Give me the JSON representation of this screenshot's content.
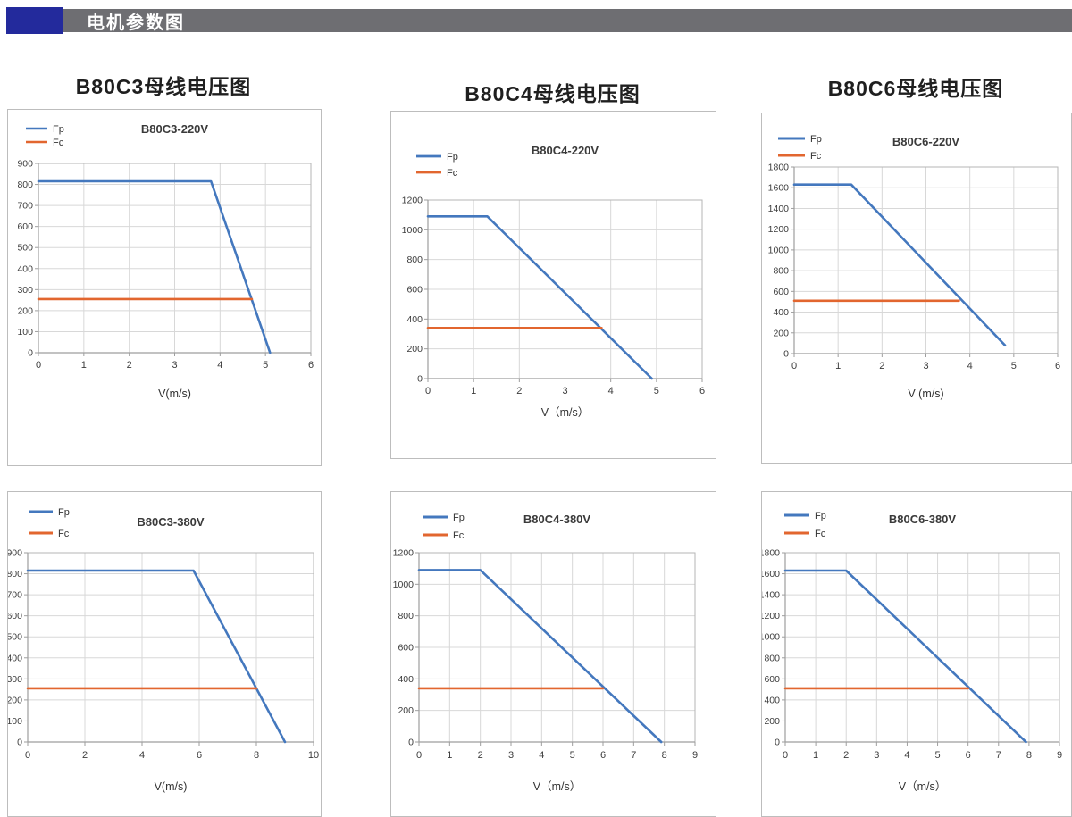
{
  "header": {
    "title": "电机参数图"
  },
  "columns": [
    {
      "heading": "B80C3母线电压图"
    },
    {
      "heading": "B80C4母线电压图"
    },
    {
      "heading": "B80C6母线电压图"
    }
  ],
  "palette": {
    "fp_blue": "#4478BE",
    "fc_orange": "#E2662F",
    "header_block_blue": "#232A9C",
    "header_bar_gray": "#6E6E72",
    "grid_gray": "#D8D8D8",
    "plot_border_gray": "#B5B5B5",
    "axis_gray": "#9E9E9E"
  },
  "chart_data": [
    {
      "type": "line",
      "title": "B80C3-220V",
      "xlabel": "V(m/s)",
      "xlim": [
        0,
        6
      ],
      "x_step": 1,
      "ylim": [
        0,
        900
      ],
      "y_step": 100,
      "grid": true,
      "legend_position": "top-left",
      "series": [
        {
          "name": "Fp",
          "color": "#4478BE",
          "points": [
            [
              0,
              815
            ],
            [
              3.8,
              815
            ],
            [
              5.1,
              0
            ]
          ]
        },
        {
          "name": "Fc",
          "color": "#E2662F",
          "points": [
            [
              0,
              255
            ],
            [
              4.7,
              255
            ]
          ]
        }
      ]
    },
    {
      "type": "line",
      "title": "B80C4-220V",
      "xlabel": "V（m/s）",
      "xlim": [
        0,
        6
      ],
      "x_step": 1,
      "ylim": [
        0,
        1200
      ],
      "y_step": 200,
      "grid": true,
      "legend_position": "top-left",
      "series": [
        {
          "name": "Fp",
          "color": "#4478BE",
          "points": [
            [
              0,
              1090
            ],
            [
              1.3,
              1090
            ],
            [
              4.9,
              0
            ]
          ]
        },
        {
          "name": "Fc",
          "color": "#E2662F",
          "points": [
            [
              0,
              340
            ],
            [
              3.8,
              340
            ]
          ]
        }
      ]
    },
    {
      "type": "line",
      "title": "B80C6-220V",
      "xlabel": "V (m/s)",
      "xlim": [
        0,
        6
      ],
      "x_step": 1,
      "ylim": [
        0,
        1800
      ],
      "y_step": 200,
      "grid": true,
      "legend_position": "top-left",
      "series": [
        {
          "name": "Fp",
          "color": "#4478BE",
          "points": [
            [
              0,
              1630
            ],
            [
              1.3,
              1630
            ],
            [
              4.8,
              80
            ]
          ]
        },
        {
          "name": "Fc",
          "color": "#E2662F",
          "points": [
            [
              0,
              510
            ],
            [
              3.75,
              510
            ]
          ]
        }
      ]
    },
    {
      "type": "line",
      "title": "B80C3-380V",
      "xlabel": "V(m/s)",
      "xlim": [
        0,
        10
      ],
      "x_step": 2,
      "ylim": [
        0,
        900
      ],
      "y_step": 100,
      "grid": true,
      "legend_position": "top-left",
      "series": [
        {
          "name": "Fp",
          "color": "#4478BE",
          "points": [
            [
              0,
              815
            ],
            [
              5.8,
              815
            ],
            [
              9,
              0
            ]
          ]
        },
        {
          "name": "Fc",
          "color": "#E2662F",
          "points": [
            [
              0,
              255
            ],
            [
              8,
              255
            ]
          ]
        }
      ]
    },
    {
      "type": "line",
      "title": "B80C4-380V",
      "xlabel": "V（m/s）",
      "xlim": [
        0,
        9
      ],
      "x_step": 1,
      "ylim": [
        0,
        1200
      ],
      "y_step": 200,
      "grid": true,
      "legend_position": "top-left",
      "series": [
        {
          "name": "Fp",
          "color": "#4478BE",
          "points": [
            [
              0,
              1090
            ],
            [
              2,
              1090
            ],
            [
              7.9,
              0
            ]
          ]
        },
        {
          "name": "Fc",
          "color": "#E2662F",
          "points": [
            [
              0,
              340
            ],
            [
              6,
              340
            ]
          ]
        }
      ]
    },
    {
      "type": "line",
      "title": "B80C6-380V",
      "xlabel": "V（m/s）",
      "xlim": [
        0,
        9
      ],
      "x_step": 1,
      "ylim": [
        0,
        1800
      ],
      "y_step": 200,
      "grid": true,
      "legend_position": "top-left",
      "series": [
        {
          "name": "Fp",
          "color": "#4478BE",
          "points": [
            [
              0,
              1630
            ],
            [
              2,
              1630
            ],
            [
              7.9,
              0
            ]
          ]
        },
        {
          "name": "Fc",
          "color": "#E2662F",
          "points": [
            [
              0,
              510
            ],
            [
              6,
              510
            ]
          ]
        }
      ]
    }
  ]
}
